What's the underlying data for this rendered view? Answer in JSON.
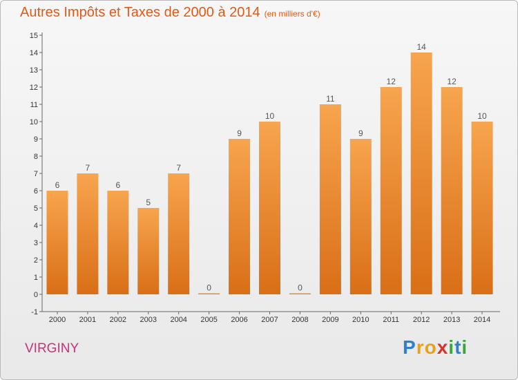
{
  "title": "Autres Impôts et Taxes de 2000 à 2014",
  "subtitle": "(en milliers d'€)",
  "commune": "VIRGINY",
  "logo": {
    "p": "P",
    "r": "r",
    "o": "o",
    "x": "x",
    "i": "i",
    "t": "t",
    "i2": "i"
  },
  "colors": {
    "title": "#e05a17",
    "commune": "#c8327a",
    "bar_top": "#f7a54e",
    "bar_bottom": "#d96f17"
  },
  "chart_data": {
    "type": "bar",
    "title": "Autres Impôts et Taxes de 2000 à 2014",
    "subtitle": "(en milliers d'€)",
    "categories": [
      "2000",
      "2001",
      "2002",
      "2003",
      "2004",
      "2005",
      "2006",
      "2007",
      "2008",
      "2009",
      "2010",
      "2011",
      "2012",
      "2013",
      "2014"
    ],
    "values": [
      6,
      7,
      6,
      5,
      7,
      0,
      9,
      10,
      0,
      11,
      9,
      12,
      14,
      12,
      10
    ],
    "ylim": [
      -1,
      15
    ],
    "yticks": [
      -1,
      0,
      1,
      2,
      3,
      4,
      5,
      6,
      7,
      8,
      9,
      10,
      11,
      12,
      13,
      14,
      15
    ],
    "grid": false,
    "data_labels": true
  }
}
